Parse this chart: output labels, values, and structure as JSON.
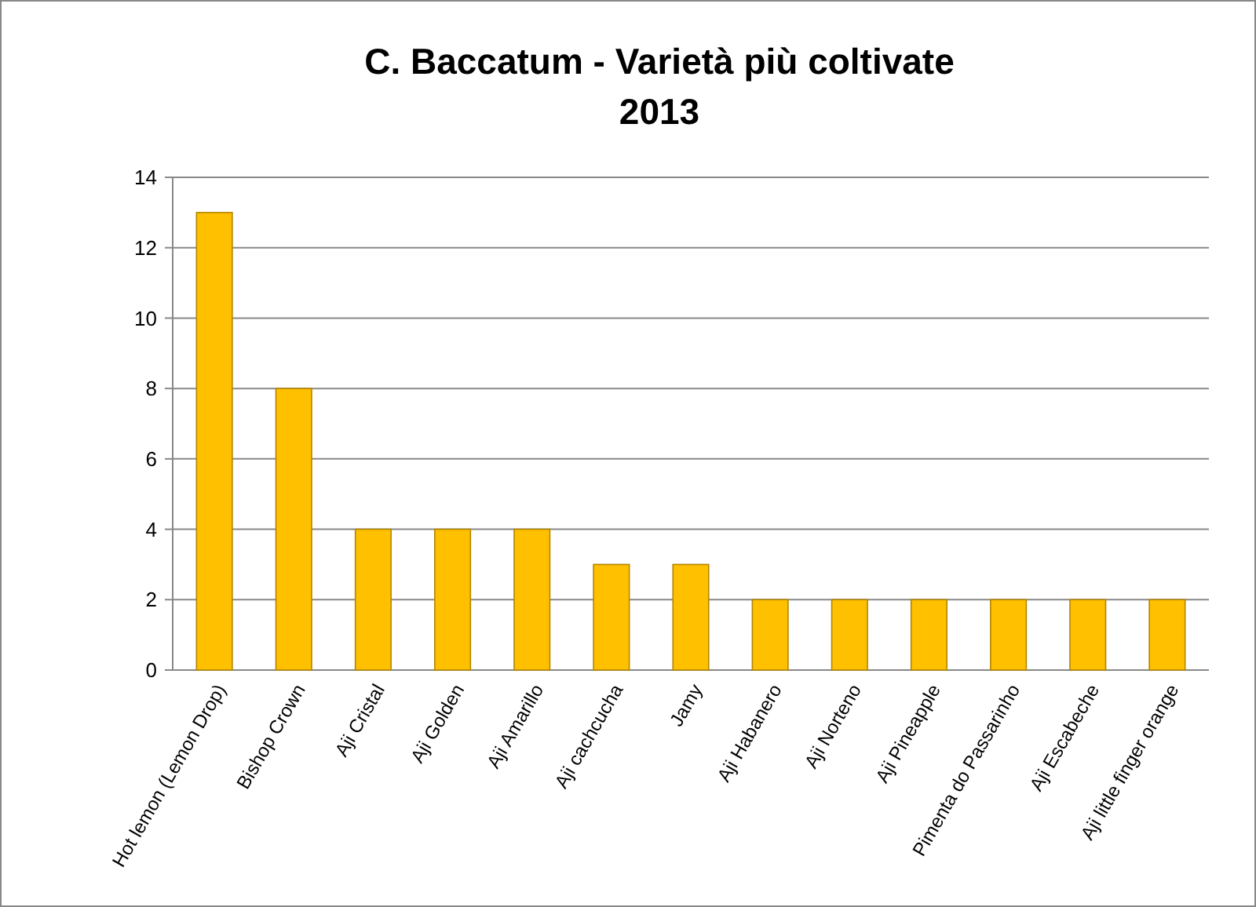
{
  "chart_data": {
    "type": "bar",
    "title": "C. Baccatum - Varietà più coltivate",
    "subtitle": "2013",
    "categories": [
      "Hot lemon (Lemon Drop)",
      "Bishop Crown",
      "Aji Cristal",
      "Aji Golden",
      "Aji Amarillo",
      "Aji cachcucha",
      "Jamy",
      "Aji Habanero",
      "Aji Norteno",
      "Aji Pineapple",
      "Pimenta do Passarinho",
      "Aji Escabeche",
      "Aji little finger orange"
    ],
    "values": [
      13,
      8,
      4,
      4,
      4,
      3,
      3,
      2,
      2,
      2,
      2,
      2,
      2
    ],
    "color": "#ffc000",
    "ylim": [
      0,
      14
    ],
    "yticks": [
      0,
      2,
      4,
      6,
      8,
      10,
      12,
      14
    ],
    "grid": "y"
  }
}
